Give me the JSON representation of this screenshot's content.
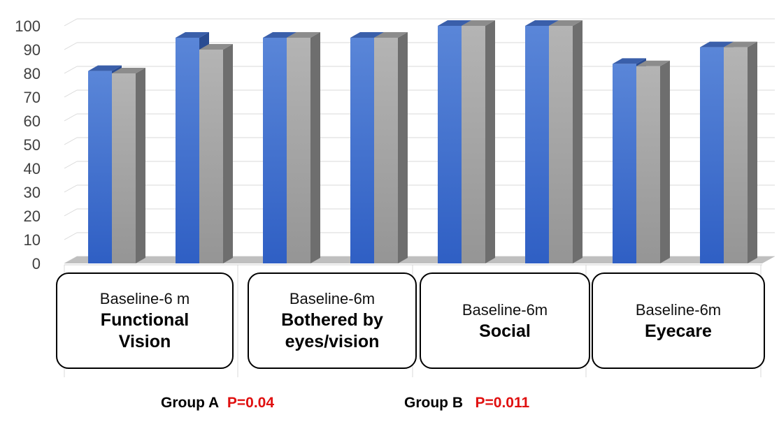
{
  "chart_data": {
    "type": "bar",
    "ylim": [
      0,
      100
    ],
    "yticks": [
      0,
      10,
      20,
      30,
      40,
      50,
      60,
      70,
      80,
      90,
      100
    ],
    "grid": true,
    "series_colors": [
      "#3b6fd1",
      "#a6a6a6"
    ],
    "bars": [
      [
        81,
        80
      ],
      [
        95,
        90
      ],
      [
        95,
        95
      ],
      [
        95,
        95
      ],
      [
        100,
        100
      ],
      [
        100,
        100
      ],
      [
        84,
        83
      ],
      [
        91,
        91
      ]
    ],
    "groups": [
      {
        "sub": "Baseline-6 m",
        "main": [
          "Functional",
          "Vision"
        ]
      },
      {
        "sub": "Baseline-6m",
        "main": [
          "Bothered by",
          "eyes/vision"
        ]
      },
      {
        "sub": "Baseline-6m",
        "main": [
          "Social"
        ]
      },
      {
        "sub": "Baseline-6m",
        "main": [
          "Eyecare"
        ]
      }
    ]
  },
  "footer": {
    "group_a_label": "Group A",
    "group_a_p": "P=0.04",
    "group_b_label": "Group B",
    "group_b_p": "P=0.011"
  }
}
